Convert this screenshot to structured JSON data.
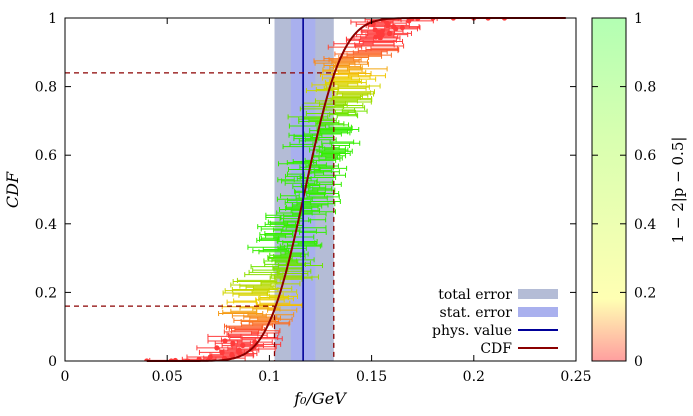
{
  "chart_data": {
    "type": "scatter",
    "xlabel": "f₀/GeV",
    "ylabel": "CDF",
    "colorbar_label": "1 − 2|p − 0.5|",
    "xlim": [
      0,
      0.25
    ],
    "ylim": [
      0,
      1
    ],
    "xticks": [
      "0",
      "0.05",
      "0.1",
      "0.15",
      "0.2",
      "0.25"
    ],
    "xtick_values": [
      0,
      0.05,
      0.1,
      0.15,
      0.2,
      0.25
    ],
    "yticks": [
      "0",
      "0.2",
      "0.4",
      "0.6",
      "0.8",
      "1"
    ],
    "ytick_values": [
      0,
      0.2,
      0.4,
      0.6,
      0.8,
      1
    ],
    "colorbar_ticks": [
      "0",
      "0.2",
      "0.4",
      "0.6",
      "0.8",
      "1"
    ],
    "colorbar_tick_values": [
      0,
      0.2,
      0.4,
      0.6,
      0.8,
      1
    ],
    "colorbar_colors": [
      "#ffb3b3",
      "#ffffb3",
      "#b3ffb3"
    ],
    "total_error_band": [
      0.1025,
      0.1315
    ],
    "stat_error_band": [
      0.1105,
      0.1225
    ],
    "phys_value": 0.1165,
    "cdf_mean": 0.1175,
    "cdf_sigma": 0.0145,
    "quantile_lines": [
      {
        "p": 0.16,
        "x": 0.1025
      },
      {
        "p": 0.84,
        "x": 0.1315
      }
    ],
    "colors": {
      "total_error": "#b4bcd6",
      "stat_error": "#a9b0ee",
      "phys_value": "#000099",
      "cdf": "#8b0000",
      "points_low": "#ff3b3b",
      "points_mid": "#f0d000",
      "points_high": "#33ee00"
    },
    "legend": {
      "position": "bottom-right",
      "entries": [
        {
          "label": "total error",
          "kind": "band",
          "color": "#b4bcd6"
        },
        {
          "label": "stat. error",
          "kind": "band",
          "color": "#a9b0ee"
        },
        {
          "label": "phys. value",
          "kind": "line",
          "color": "#000099"
        },
        {
          "label": "CDF",
          "kind": "line",
          "color": "#8b0000"
        }
      ]
    },
    "sample_count": 300,
    "sample_x_range": [
      0.04,
      0.215
    ],
    "grid": false
  }
}
